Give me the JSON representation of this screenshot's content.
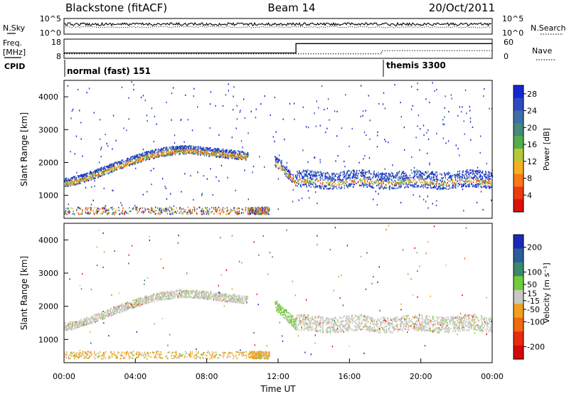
{
  "header": {
    "station": "Blackstone (fitACF)",
    "beam": "Beam 14",
    "date": "20/Oct/2011"
  },
  "side_labels": {
    "nsky": "N.Sky",
    "freq_line1": "Freq.",
    "freq_line2": "[MHz]",
    "cpid": "CPID",
    "nsearch": "N.Search",
    "nave": "Nave"
  },
  "time_axis": {
    "label": "Time UT",
    "ticks": [
      "00:00",
      "04:00",
      "08:00",
      "12:00",
      "16:00",
      "20:00",
      "00:00"
    ]
  },
  "chart_data": [
    {
      "type": "line",
      "panel": "noise",
      "left_ticks": [
        "10^5",
        "10^0"
      ],
      "right_ticks": [
        "10^5",
        "10^0"
      ],
      "series": [
        {
          "name": "N.Sky",
          "style": "solid"
        },
        {
          "name": "N.Search",
          "style": "dotted"
        }
      ]
    },
    {
      "type": "line",
      "panel": "frequency",
      "left_ticks": [
        "18",
        "8"
      ],
      "right_ticks": [
        "60",
        "0"
      ],
      "ylim_left": [
        8,
        18
      ],
      "ylim_right": [
        0,
        60
      ],
      "series": [
        {
          "name": "Freq.",
          "style": "solid",
          "x": [
            0,
            13.0,
            13.0,
            24
          ],
          "y": [
            10.5,
            10.5,
            16.5,
            16.5
          ]
        },
        {
          "name": "Nave",
          "style": "dotted",
          "x": [
            0,
            17.8,
            17.8,
            24
          ],
          "y": [
            12,
            12,
            24,
            24
          ]
        }
      ]
    },
    {
      "type": "table",
      "panel": "cpid",
      "modes": [
        {
          "label": "normal (fast) 151",
          "start_hour": 0.0
        },
        {
          "label": "themis 3300",
          "start_hour": 17.9
        }
      ]
    },
    {
      "type": "heatmap",
      "panel": "power",
      "ylabel": "Slant Range [km]",
      "yticks": [
        "1000",
        "2000",
        "3000",
        "4000"
      ],
      "ylim": [
        300,
        4500
      ],
      "xlim": [
        0,
        24
      ],
      "colorbar": {
        "label": "Power [dB]",
        "ticks": [
          "4",
          "8",
          "12",
          "16",
          "20",
          "24",
          "28"
        ],
        "range": [
          0,
          30
        ],
        "colors": [
          "#1626d6",
          "#2e49c0",
          "#3d6fa6",
          "#438a78",
          "#52ad4a",
          "#b4c93a",
          "#f5b020",
          "#f77a14",
          "#ed3a10",
          "#dd0e0e"
        ]
      }
    },
    {
      "type": "heatmap",
      "panel": "velocity",
      "ylabel": "Slant Range [km]",
      "yticks": [
        "1000",
        "2000",
        "3000",
        "4000"
      ],
      "ylim": [
        300,
        4500
      ],
      "xlim": [
        0,
        24
      ],
      "colorbar": {
        "label": "Velocity [m s⁻¹]",
        "ticks": [
          "200",
          "100",
          "50",
          "15",
          "-15",
          "-50",
          "-100",
          "-200"
        ],
        "range": [
          -250,
          250
        ],
        "colors": [
          "#1a2ab8",
          "#2c5d9a",
          "#3a8a6a",
          "#70cc3a",
          "#c8c8c2",
          "#f0a020",
          "#f06a10",
          "#e82a10",
          "#d40808"
        ]
      }
    }
  ]
}
